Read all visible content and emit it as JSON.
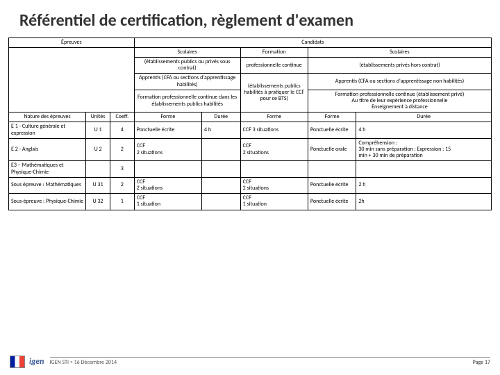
{
  "title": "Référentiel de certification, règlement d'examen",
  "hdr": {
    "epreuves": "Épreuves",
    "candidats": "Candidats",
    "col_a_1": "Scolaires",
    "col_a_2": "(établissements publics ou privés sous contrat)",
    "col_a_3": "Apprentis (CFA ou sections d'apprentissage habilités)",
    "col_a_4": "Formation professionnelle continue dans les établissements publics habilités",
    "col_b_1": "Formation",
    "col_b_2": "professionnelle continue",
    "col_b_3": "(établissements publics habilités à pratiquer le CCF pour ce BTS)",
    "col_c_1": "Scolaires",
    "col_c_2": "(établissements privés hors contrat)",
    "col_c_3": "Apprentis (CFA ou sections d'apprentissage non habilités)",
    "col_c_4": "Formation professionnelle continue (établissement privé)",
    "col_c_5": "Au titre de leur expérience professionnelle",
    "col_c_6": "Enseignement à distance",
    "nature": "Nature des épreuves",
    "unites": "Unités",
    "coeff": "Coeff.",
    "forme": "Forme",
    "duree": "Durée"
  },
  "rows": [
    {
      "name": "E 1 - Culture générale et expression",
      "unit": "U 1",
      "coeff": "4",
      "forme1": "Ponctuelle écrite",
      "duree1": "4 h",
      "forme2": "CCF 3 situations",
      "forme3": "Ponctuelle écrite",
      "duree3": "4 h"
    },
    {
      "name": "E 2 - Anglais",
      "unit": "U 2",
      "coeff": "2",
      "forme1": "CCF\n2 situations",
      "duree1": "",
      "forme2": "CCF\n2 situations",
      "forme3": "Ponctuelle orale",
      "duree3": "Compréhension :\n30 min sans préparation ; Expression : 15\nmin + 30 min de préparation"
    },
    {
      "name": "E3 – Mathématiques et Physique-Chimie",
      "unit": "",
      "coeff": "3",
      "forme1": "",
      "duree1": "",
      "forme2": "",
      "forme3": "",
      "duree3": ""
    },
    {
      "name": "Sous épreuve : Mathématiques",
      "unit": "U 31",
      "coeff": "2",
      "forme1": "CCF\n2 situations",
      "duree1": "",
      "forme2": "CCF\n2 situations",
      "forme3": "Ponctuelle écrite",
      "duree3": "2 h"
    },
    {
      "name": "Sous-épreuve : Physique-Chimie",
      "unit": "U 32",
      "coeff": "1",
      "forme1": "CCF\n1 situation",
      "duree1": "",
      "forme2": "CCF\n1 situation",
      "forme3": "Ponctuelle écrite",
      "duree3": "2h"
    }
  ],
  "footer": {
    "center": "IGEN STI > 16 Décembre 2014",
    "right": "Page 17",
    "logo2": "igen"
  }
}
